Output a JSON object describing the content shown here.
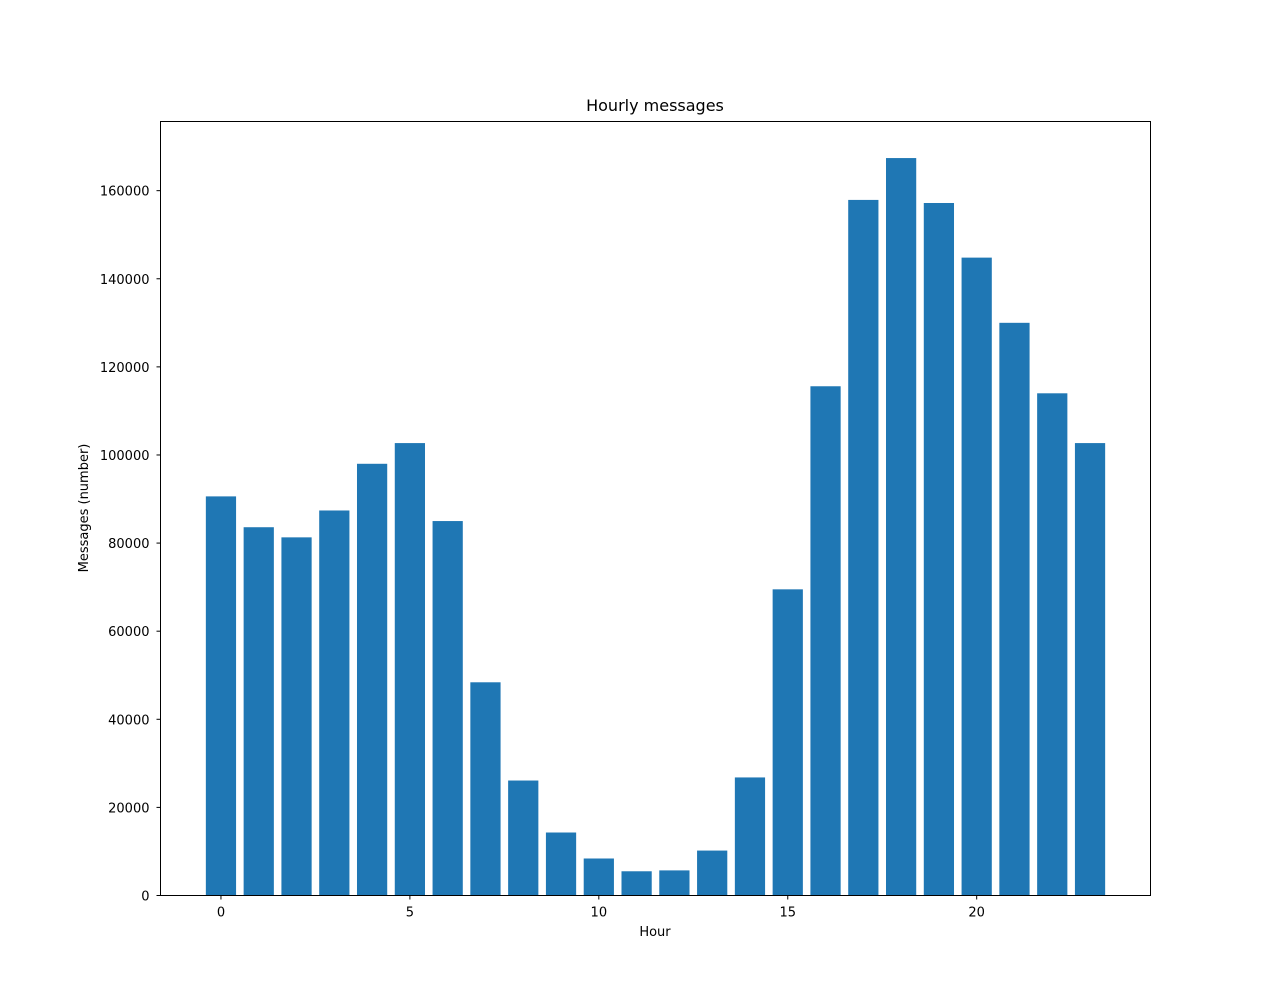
{
  "chart_data": {
    "type": "bar",
    "title": "Hourly messages",
    "xlabel": "Hour",
    "ylabel": "Messages (number)",
    "x": [
      0,
      1,
      2,
      3,
      4,
      5,
      6,
      7,
      8,
      9,
      10,
      11,
      12,
      13,
      14,
      15,
      16,
      17,
      18,
      19,
      20,
      21,
      22,
      23
    ],
    "values": [
      90600,
      83600,
      81300,
      87400,
      98000,
      102700,
      85000,
      48400,
      26100,
      14300,
      8400,
      5500,
      5700,
      10200,
      26800,
      69500,
      115600,
      157900,
      167400,
      157200,
      144800,
      130000,
      114000,
      102700
    ],
    "xlim": [
      -1.6,
      24.6
    ],
    "ylim": [
      0,
      175700
    ],
    "xticks": [
      0,
      5,
      10,
      15,
      20
    ],
    "yticks": [
      0,
      20000,
      40000,
      60000,
      80000,
      100000,
      120000,
      140000,
      160000
    ],
    "bar_color": "#1f77b4",
    "grid": false,
    "legend": false
  }
}
